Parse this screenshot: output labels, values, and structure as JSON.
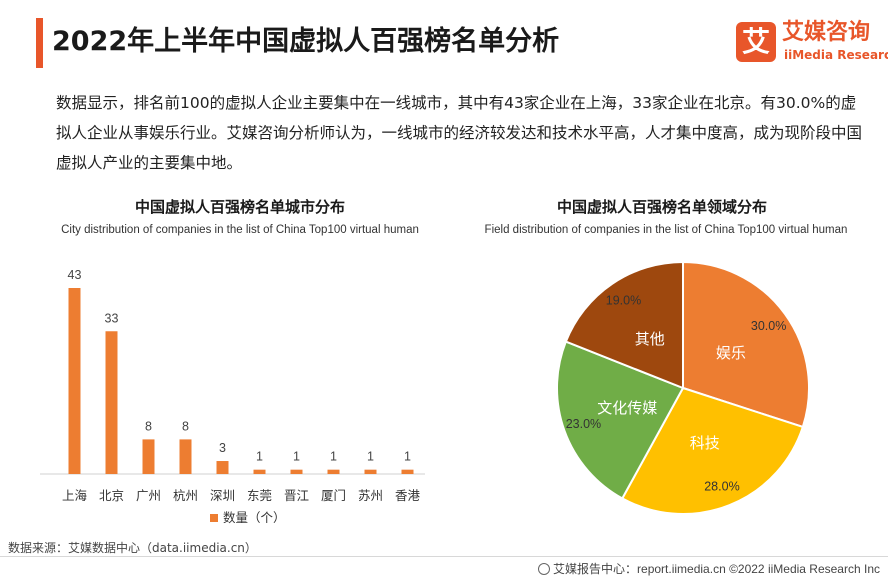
{
  "header": {
    "title": "2022年上半年中国虚拟人百强榜名单分析",
    "logo_mark": "艾",
    "logo_cn": "艾媒咨询",
    "logo_en": "iiMedia Research"
  },
  "summary": "数据显示，排名前100的虚拟人企业主要集中在一线城市，其中有43家企业在上海，33家企业在北京。有30.0%的虚拟人企业从事娱乐行业。艾媒咨询分析师认为，一线城市的经济较发达和技术水平高，人才集中度高，成为现阶段中国虚拟人产业的主要集中地。",
  "colors": {
    "accent": "#e8562a",
    "bar": "#ed7d31",
    "pie_entertainment": "#ed7d31",
    "pie_tech": "#ffc000",
    "pie_culture": "#70ad47",
    "pie_other": "#9e480e"
  },
  "chart_data": [
    {
      "type": "bar",
      "title": "中国虚拟人百强榜名单城市分布",
      "subtitle": "City distribution of companies in the list of China Top100 virtual human",
      "categories": [
        "上海",
        "北京",
        "广州",
        "杭州",
        "深圳",
        "东莞",
        "晋江",
        "厦门",
        "苏州",
        "香港"
      ],
      "series": [
        {
          "name": "数量（个）",
          "values": [
            43,
            33,
            8,
            8,
            3,
            1,
            1,
            1,
            1,
            1
          ]
        }
      ],
      "ylim": [
        0,
        43
      ],
      "grid": false,
      "legend": "bottom"
    },
    {
      "type": "pie",
      "title": "中国虚拟人百强榜名单领域分布",
      "subtitle": "Field distribution of companies in the list of China Top100 virtual human",
      "slices": [
        {
          "label": "娱乐",
          "value": 30.0,
          "display": "30.0%"
        },
        {
          "label": "科技",
          "value": 28.0,
          "display": "28.0%"
        },
        {
          "label": "文化传媒",
          "value": 23.0,
          "display": "23.0%"
        },
        {
          "label": "其他",
          "value": 19.0,
          "display": "19.0%"
        }
      ]
    }
  ],
  "source": "数据来源：艾媒数据中心（data.iimedia.cn）",
  "footer": "艾媒报告中心：report.iimedia.cn   ©2022 iiMedia Research Inc"
}
